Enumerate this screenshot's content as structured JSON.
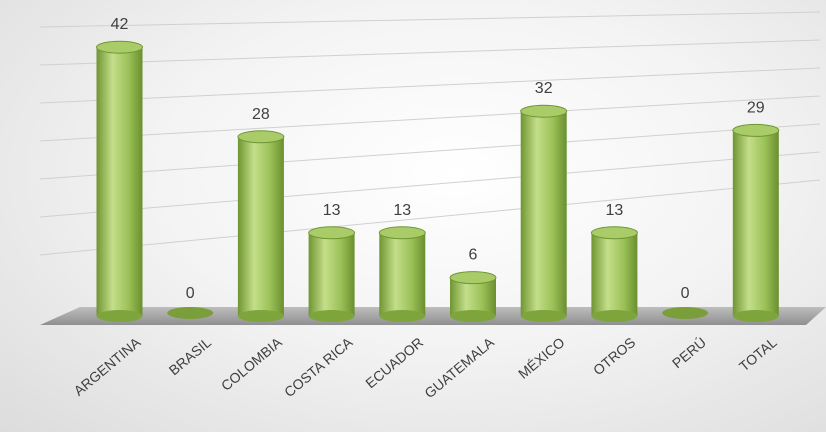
{
  "chart_data": {
    "type": "bar",
    "style": "3d-cylinder",
    "categories": [
      "ARGENTINA",
      "BRASIL",
      "COLOMBIA",
      "COSTA RICA",
      "ECUADOR",
      "GUATEMALA",
      "MÉXICO",
      "OTROS",
      "PERÚ",
      "TOTAL"
    ],
    "values": [
      42,
      0,
      28,
      13,
      13,
      6,
      32,
      13,
      0,
      29
    ],
    "title": "",
    "xlabel": "",
    "ylabel": "",
    "ylim": [
      0,
      45
    ],
    "grid": true,
    "legend": "none",
    "colors": {
      "bar_light": "#c4de8a",
      "bar_mid": "#9bc158",
      "bar_dark": "#6f9532",
      "bar_top": "#a9cc68",
      "floor": "#a6a6a6",
      "gridline": "#d0d0d0",
      "text": "#404040"
    }
  }
}
